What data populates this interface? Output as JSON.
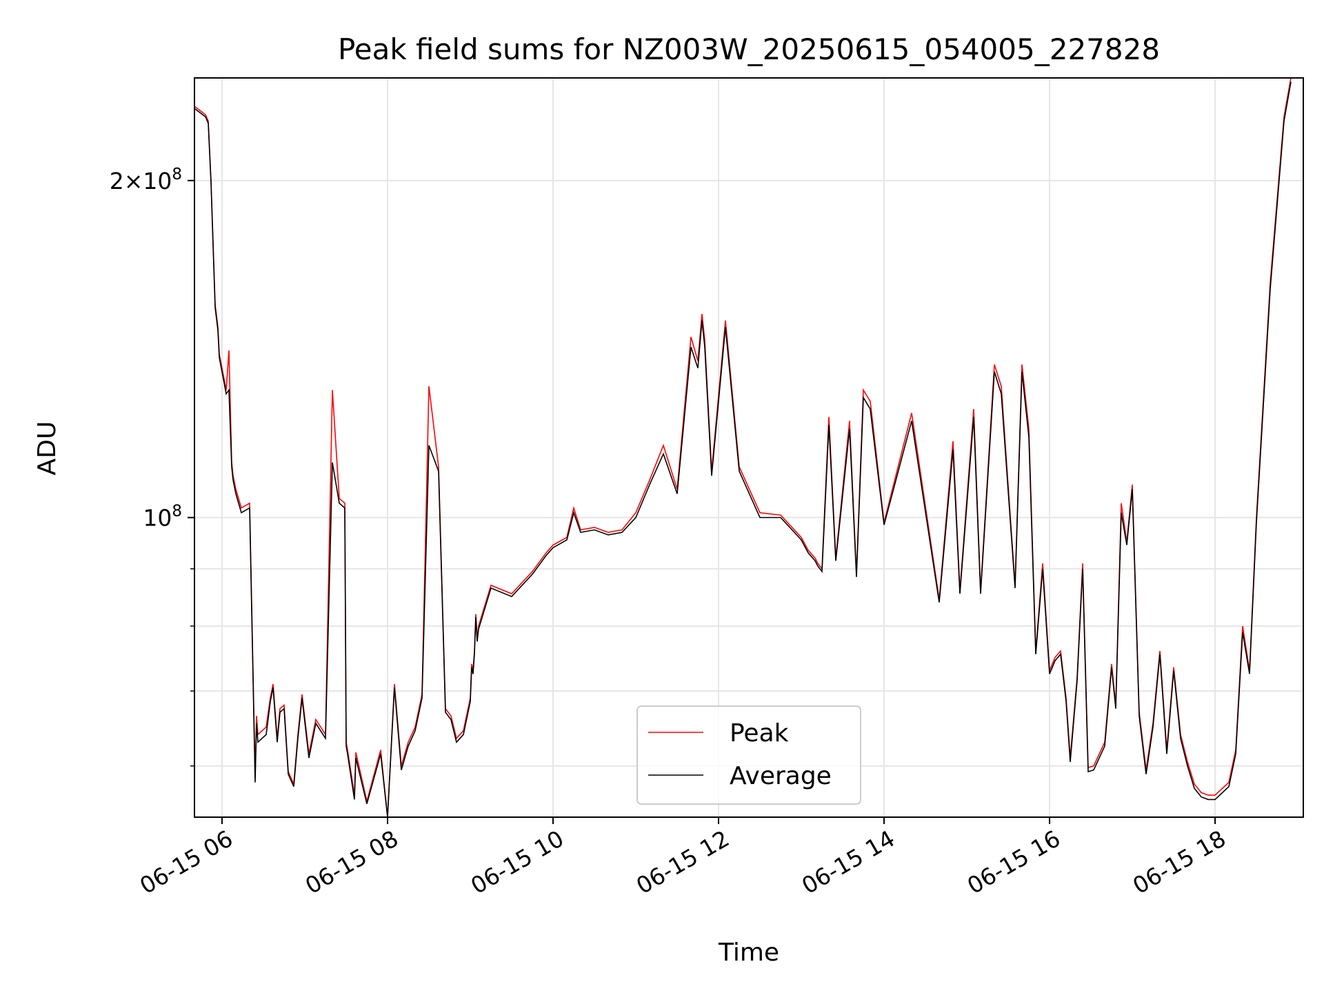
{
  "chart_data": {
    "type": "line",
    "title": "Peak field sums for NZ003W_20250615_054005_227828",
    "xlabel": "Time",
    "ylabel": "ADU",
    "yscale": "log",
    "xlim": [
      "2025-06-15 05:40",
      "2025-06-15 19:04"
    ],
    "ylim": [
      54000000,
      247000000
    ],
    "x_ticks": [
      "06-15 06",
      "06-15 08",
      "06-15 10",
      "06-15 12",
      "06-15 14",
      "06-15 16",
      "06-15 18"
    ],
    "y_ticks": [
      {
        "value": 100000000,
        "base": "10",
        "exp": "8"
      },
      {
        "value": 200000000,
        "coef": "2",
        "times": "×",
        "base": "10",
        "exp": "8"
      }
    ],
    "grid": true,
    "legend_position": "bottom-center",
    "colors": {
      "peak": "#ff0000",
      "average": "#000000",
      "grid": "#e6e6e6"
    },
    "series": [
      {
        "name": "Peak",
        "color": "#ff0000",
        "x": [
          "05:40",
          "05:48",
          "05:50",
          "05:52",
          "05:55",
          "05:57",
          "05:58",
          "06:03",
          "06:05",
          "06:07",
          "06:08",
          "06:10",
          "06:14",
          "06:20",
          "06:24",
          "06:25",
          "06:26",
          "06:32",
          "06:35",
          "06:37",
          "06:40",
          "06:42",
          "06:45",
          "06:48",
          "06:52",
          "06:55",
          "06:58",
          "07:03",
          "07:08",
          "07:15",
          "07:20",
          "07:25",
          "07:29",
          "07:30",
          "07:31",
          "07:36",
          "07:37",
          "07:45",
          "07:55",
          "08:00",
          "08:05",
          "08:10",
          "08:15",
          "08:20",
          "08:25",
          "08:30",
          "08:37",
          "08:42",
          "08:46",
          "08:50",
          "08:55",
          "09:00",
          "09:01",
          "09:02",
          "09:03",
          "09:04",
          "09:05",
          "09:06",
          "09:15",
          "09:30",
          "09:45",
          "09:55",
          "10:00",
          "10:10",
          "10:15",
          "10:20",
          "10:30",
          "10:40",
          "10:50",
          "11:00",
          "11:10",
          "11:20",
          "11:30",
          "11:40",
          "11:45",
          "11:48",
          "11:50",
          "11:55",
          "12:05",
          "12:15",
          "12:30",
          "12:45",
          "12:50",
          "12:55",
          "13:00",
          "13:05",
          "13:10",
          "13:12",
          "13:15",
          "13:20",
          "13:25",
          "13:35",
          "13:40",
          "13:45",
          "13:50",
          "14:00",
          "14:20",
          "14:40",
          "14:50",
          "14:55",
          "15:05",
          "15:10",
          "15:20",
          "15:25",
          "15:35",
          "15:40",
          "15:45",
          "15:50",
          "15:55",
          "16:00",
          "16:04",
          "16:08",
          "16:12",
          "16:15",
          "16:20",
          "16:24",
          "16:28",
          "16:32",
          "16:40",
          "16:45",
          "16:48",
          "16:52",
          "16:56",
          "17:00",
          "17:05",
          "17:10",
          "17:15",
          "17:20",
          "17:25",
          "17:30",
          "17:35",
          "17:40",
          "17:45",
          "17:50",
          "17:55",
          "18:00",
          "18:10",
          "18:15",
          "18:20",
          "18:25",
          "18:30",
          "18:40",
          "18:50",
          "18:55"
        ],
        "y": [
          233000000,
          229000000,
          226000000,
          200000000,
          155000000,
          148000000,
          140000000,
          130000000,
          141000000,
          112000000,
          109000000,
          106000000,
          102000000,
          103000000,
          58700000,
          66500000,
          64000000,
          65000000,
          69000000,
          71000000,
          63500000,
          67500000,
          68000000,
          59300000,
          57800000,
          64000000,
          69500000,
          61500000,
          66000000,
          64000000,
          130000000,
          104000000,
          103000000,
          63000000,
          62000000,
          56500000,
          61700000,
          55800000,
          62000000,
          54000000,
          71000000,
          60000000,
          63000000,
          65000000,
          69500000,
          131000000,
          111000000,
          67500000,
          66500000,
          63500000,
          64500000,
          69000000,
          74000000,
          73000000,
          76000000,
          82000000,
          78000000,
          80000000,
          87000000,
          85500000,
          89500000,
          93000000,
          94500000,
          96000000,
          102000000,
          97500000,
          98000000,
          97000000,
          97500000,
          101000000,
          108000000,
          116000000,
          106000000,
          145000000,
          138000000,
          152000000,
          144000000,
          110000000,
          150000000,
          111000000,
          101000000,
          100500000,
          99000000,
          97500000,
          96000000,
          93500000,
          92000000,
          91000000,
          90000000,
          123000000,
          92000000,
          122000000,
          89000000,
          130000000,
          127000000,
          99000000,
          124000000,
          84500000,
          117000000,
          86000000,
          125000000,
          86000000,
          137000000,
          131000000,
          87000000,
          137000000,
          120000000,
          76000000,
          91000000,
          73000000,
          75000000,
          76000000,
          69000000,
          61000000,
          72000000,
          91000000,
          59800000,
          60000000,
          63000000,
          74000000,
          68000000,
          103000000,
          95000000,
          107000000,
          67000000,
          59500000,
          65500000,
          76000000,
          62000000,
          73500000,
          64000000,
          60500000,
          57800000,
          56800000,
          56500000,
          56500000,
          58000000,
          62000000,
          80000000,
          73000000,
          100000000,
          162000000,
          228000000,
          247000000
        ]
      },
      {
        "name": "Average",
        "color": "#000000",
        "x": [
          "05:40",
          "05:48",
          "05:50",
          "05:52",
          "05:55",
          "05:57",
          "05:58",
          "06:03",
          "06:05",
          "06:07",
          "06:08",
          "06:10",
          "06:14",
          "06:20",
          "06:24",
          "06:25",
          "06:26",
          "06:32",
          "06:35",
          "06:37",
          "06:40",
          "06:42",
          "06:45",
          "06:48",
          "06:52",
          "06:55",
          "06:58",
          "07:03",
          "07:08",
          "07:15",
          "07:20",
          "07:25",
          "07:29",
          "07:30",
          "07:31",
          "07:36",
          "07:37",
          "07:45",
          "07:55",
          "08:00",
          "08:05",
          "08:10",
          "08:15",
          "08:20",
          "08:25",
          "08:30",
          "08:37",
          "08:42",
          "08:46",
          "08:50",
          "08:55",
          "09:00",
          "09:01",
          "09:02",
          "09:03",
          "09:04",
          "09:05",
          "09:06",
          "09:15",
          "09:30",
          "09:45",
          "09:55",
          "10:00",
          "10:10",
          "10:15",
          "10:20",
          "10:30",
          "10:40",
          "10:50",
          "11:00",
          "11:10",
          "11:20",
          "11:30",
          "11:40",
          "11:45",
          "11:48",
          "11:50",
          "11:55",
          "12:05",
          "12:15",
          "12:30",
          "12:45",
          "12:50",
          "12:55",
          "13:00",
          "13:05",
          "13:10",
          "13:12",
          "13:15",
          "13:20",
          "13:25",
          "13:35",
          "13:40",
          "13:45",
          "13:50",
          "14:00",
          "14:20",
          "14:40",
          "14:50",
          "14:55",
          "15:05",
          "15:10",
          "15:20",
          "15:25",
          "15:35",
          "15:40",
          "15:45",
          "15:50",
          "15:55",
          "16:00",
          "16:04",
          "16:08",
          "16:12",
          "16:15",
          "16:20",
          "16:24",
          "16:28",
          "16:32",
          "16:40",
          "16:45",
          "16:48",
          "16:52",
          "16:56",
          "17:00",
          "17:05",
          "17:10",
          "17:15",
          "17:20",
          "17:25",
          "17:30",
          "17:35",
          "17:40",
          "17:45",
          "17:50",
          "17:55",
          "18:00",
          "18:10",
          "18:15",
          "18:20",
          "18:25",
          "18:30",
          "18:40",
          "18:50",
          "18:55"
        ],
        "y": [
          232000000,
          228000000,
          225000000,
          199000000,
          154000000,
          147000000,
          139000000,
          129000000,
          130000000,
          111000000,
          108000000,
          105000000,
          101000000,
          102000000,
          58000000,
          65500000,
          63000000,
          64000000,
          68500000,
          70500000,
          63000000,
          67000000,
          67500000,
          59000000,
          57500000,
          63500000,
          69000000,
          61000000,
          65500000,
          63500000,
          112000000,
          103000000,
          102000000,
          62500000,
          61500000,
          56000000,
          61000000,
          55500000,
          61500000,
          53500000,
          70500000,
          59500000,
          62500000,
          64500000,
          69000000,
          116000000,
          110000000,
          67000000,
          66000000,
          63000000,
          64000000,
          68500000,
          73500000,
          72500000,
          75500000,
          81500000,
          77500000,
          79500000,
          86500000,
          85000000,
          89000000,
          92500000,
          94000000,
          95500000,
          101000000,
          97000000,
          97500000,
          96500000,
          97000000,
          100000000,
          107000000,
          114000000,
          105000000,
          142000000,
          136000000,
          150000000,
          142000000,
          109000000,
          148000000,
          110000000,
          100000000,
          100000000,
          98500000,
          97000000,
          95500000,
          93000000,
          91500000,
          90500000,
          89500000,
          121000000,
          91500000,
          120000000,
          88500000,
          128000000,
          125000000,
          98500000,
          122000000,
          84000000,
          115000000,
          85500000,
          123000000,
          85500000,
          135000000,
          129000000,
          86500000,
          135000000,
          118000000,
          75500000,
          90000000,
          72500000,
          74500000,
          75500000,
          68500000,
          60500000,
          71500000,
          90000000,
          59300000,
          59500000,
          62500000,
          73500000,
          67500000,
          101000000,
          94500000,
          106000000,
          66500000,
          59000000,
          65000000,
          75500000,
          61500000,
          73000000,
          63500000,
          60000000,
          57300000,
          56300000,
          56000000,
          56000000,
          57500000,
          61500000,
          79000000,
          72500000,
          99000000,
          160000000,
          226000000,
          245000000
        ]
      }
    ]
  }
}
